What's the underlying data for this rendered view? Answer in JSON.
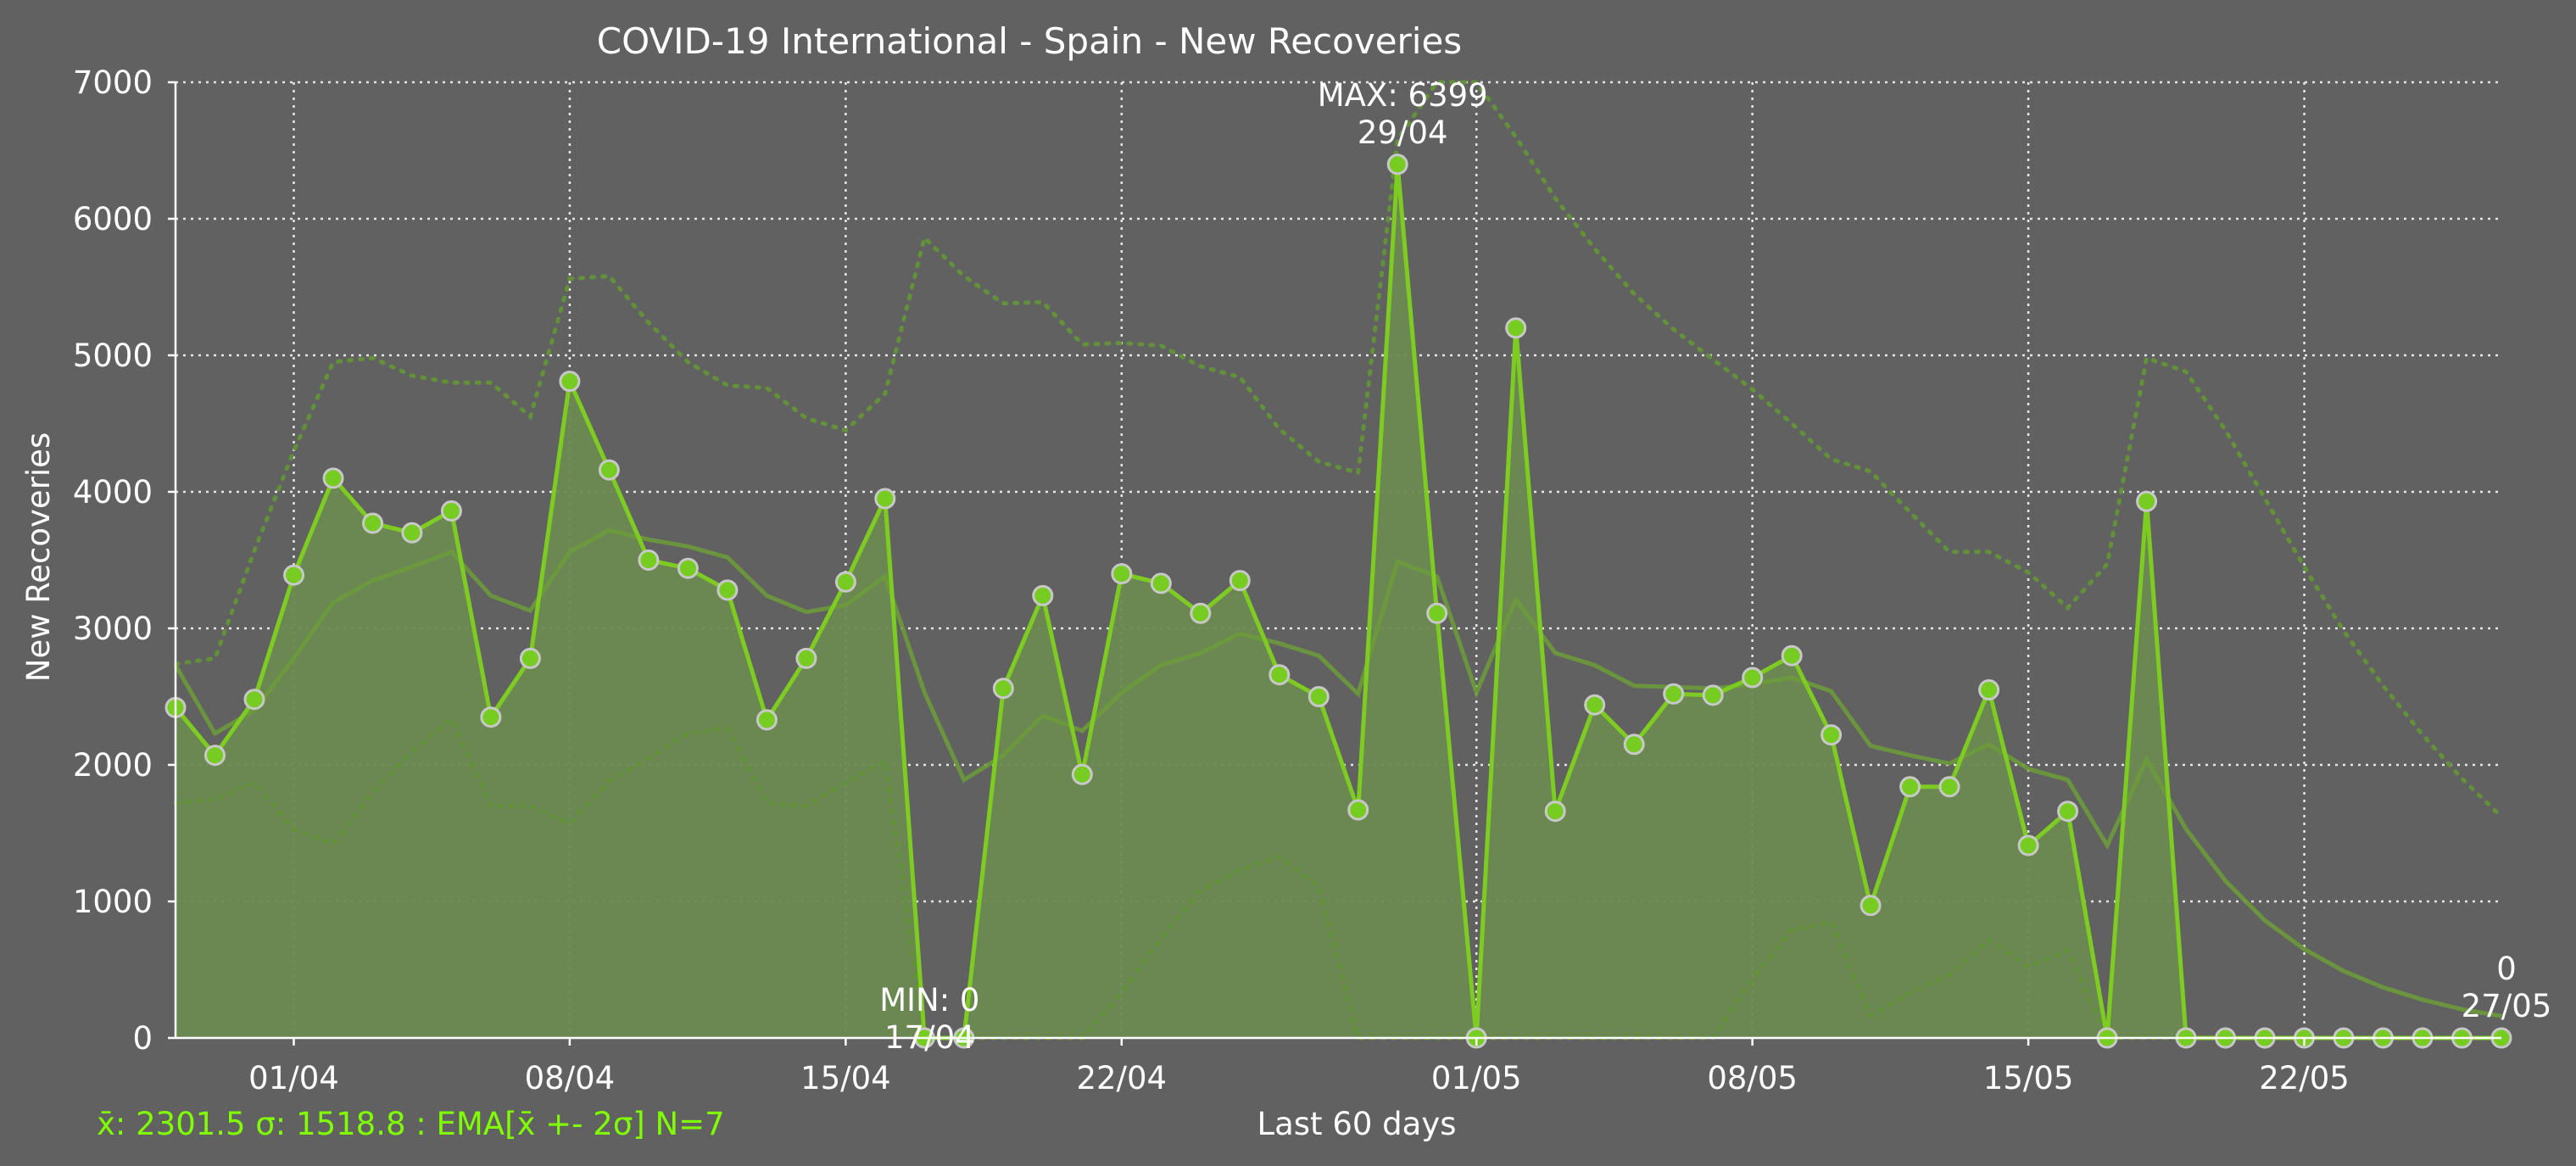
{
  "chart_data": {
    "type": "line",
    "title": "COVID-19 International - Spain - New Recoveries",
    "xlabel": "Last 60 days",
    "ylabel": "New Recoveries",
    "ylim": [
      0,
      7000
    ],
    "yticks": [
      0,
      1000,
      2000,
      3000,
      4000,
      5000,
      6000,
      7000
    ],
    "xtick_labels": [
      "01/04",
      "08/04",
      "15/04",
      "22/04",
      "01/05",
      "08/05",
      "15/05",
      "22/05"
    ],
    "xtick_indices": [
      3,
      10,
      17,
      24,
      33,
      40,
      47,
      54
    ],
    "grid": true,
    "dates": [
      "29/03",
      "30/03",
      "31/03",
      "01/04",
      "02/04",
      "03/04",
      "04/04",
      "05/04",
      "06/04",
      "07/04",
      "08/04",
      "09/04",
      "10/04",
      "11/04",
      "12/04",
      "13/04",
      "14/04",
      "15/04",
      "16/04",
      "17/04",
      "18/04",
      "19/04",
      "20/04",
      "21/04",
      "22/04",
      "23/04",
      "24/04",
      "25/04",
      "26/04",
      "27/04",
      "28/04",
      "29/04",
      "30/04",
      "01/05",
      "02/05",
      "03/05",
      "04/05",
      "05/05",
      "06/05",
      "07/05",
      "08/05",
      "09/05",
      "10/05",
      "11/05",
      "12/05",
      "13/05",
      "14/05",
      "15/05",
      "16/05",
      "17/05",
      "18/05",
      "19/05",
      "20/05",
      "21/05",
      "22/05",
      "23/05",
      "24/05",
      "25/05",
      "26/05",
      "27/05"
    ],
    "series": [
      {
        "values": [
          2420,
          2070,
          2480,
          3390,
          4100,
          3770,
          3700,
          3860,
          2350,
          2780,
          4810,
          4160,
          3500,
          3440,
          3280,
          2330,
          2780,
          3340,
          3950,
          0,
          0,
          2560,
          3240,
          1930,
          3400,
          3330,
          3110,
          3350,
          2660,
          2500,
          1670,
          6399,
          3110,
          0,
          5200,
          1660,
          2440,
          2150,
          2520,
          2510,
          2640,
          2800,
          2220,
          970,
          1840,
          1840,
          2550,
          1410,
          1660,
          0,
          3930,
          0,
          0,
          0,
          0,
          0,
          0,
          0,
          0,
          0
        ]
      }
    ],
    "ema": [
      2730,
      2230,
      2400,
      2780,
      3190,
      3350,
      3450,
      3560,
      3240,
      3130,
      3560,
      3720,
      3650,
      3600,
      3520,
      3240,
      3120,
      3170,
      3380,
      2530,
      1890,
      2070,
      2360,
      2250,
      2530,
      2730,
      2820,
      2960,
      2890,
      2800,
      2520,
      3490,
      3380,
      2530,
      3210,
      2820,
      2730,
      2580,
      2570,
      2560,
      2590,
      2640,
      2540,
      2140,
      2070,
      2010,
      2150,
      1970,
      1890,
      1410,
      2040,
      1530,
      1150,
      860,
      650,
      490,
      370,
      280,
      210,
      160
    ],
    "band_upper": [
      2740,
      2780,
      3570,
      4300,
      4950,
      4980,
      4850,
      4800,
      4800,
      4550,
      5560,
      5580,
      5240,
      4950,
      4780,
      4760,
      4540,
      4450,
      4720,
      5860,
      5580,
      5380,
      5390,
      5080,
      5090,
      5070,
      4920,
      4840,
      4460,
      4220,
      4140,
      6580,
      7400,
      7000,
      6600,
      6150,
      5780,
      5450,
      5190,
      4970,
      4750,
      4500,
      4240,
      4150,
      3850,
      3560,
      3560,
      3410,
      3150,
      3470,
      4980,
      4880,
      4450,
      3950,
      3450,
      2980,
      2580,
      2220,
      1900,
      1620
    ],
    "band_lower": [
      1720,
      1750,
      1870,
      1530,
      1420,
      1800,
      2100,
      2340,
      1700,
      1700,
      1570,
      1880,
      2050,
      2230,
      2270,
      1720,
      1700,
      1870,
      2030,
      0,
      0,
      0,
      0,
      0,
      330,
      730,
      1080,
      1230,
      1330,
      1110,
      0,
      0,
      0,
      0,
      0,
      0,
      0,
      0,
      0,
      0,
      430,
      790,
      850,
      160,
      330,
      460,
      720,
      520,
      640,
      0,
      0,
      0,
      0,
      0,
      0,
      0,
      0,
      0,
      0,
      0
    ],
    "max_annotation": {
      "label": "MAX: 6399",
      "date": "29/04"
    },
    "min_annotation": {
      "label": "MIN: 0",
      "date": "17/04"
    },
    "last_annotation": {
      "label": "0",
      "date": "27/05"
    },
    "stats_line": "x̄: 2301.5 σ: 1518.8 : EMA[x̄ +- 2σ] N=7",
    "colors": {
      "background": "#616161",
      "line": "#7ecc22",
      "fill": "#6b8a52",
      "marker_face": "#76cc20",
      "marker_edge": "#c8c8c8",
      "ema": "#6d9a3c",
      "band": "#62913a",
      "stats_text": "#7fff00",
      "text": "#ffffff"
    }
  }
}
